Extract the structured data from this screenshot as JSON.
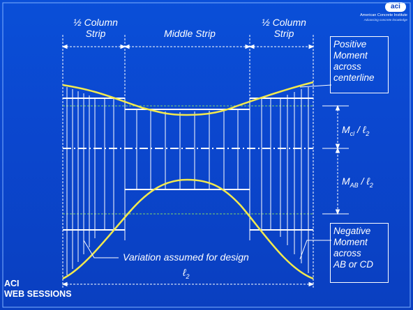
{
  "labels": {
    "left_strip": [
      "½ Column",
      "Strip"
    ],
    "middle_strip": "Middle Strip",
    "right_strip": [
      "½ Column",
      "Strip"
    ],
    "positive_moment": [
      "Positive",
      "Moment",
      "across",
      "centerline"
    ],
    "negative_moment": [
      "Negative",
      "Moment",
      "across",
      "AB or CD"
    ],
    "variation_note": "Variation assumed for design",
    "l2": "ℓ",
    "l2_sub": "2",
    "mcl_main": "M",
    "mcl_sub": "cl",
    "mcl_div": " / ℓ",
    "mcl_div_sub": "2",
    "mab_main": "M",
    "mab_sub": "AB",
    "mab_div": " / ℓ",
    "mab_div_sub": "2"
  },
  "brand": {
    "line1": "ACI",
    "line2": "WEB SESSIONS"
  },
  "logo": {
    "mark": "aci",
    "line1": "American Concrete Institute",
    "line2": "Advancing concrete knowledge"
  },
  "colors": {
    "background": "#0a47cf",
    "curve": "#f2e94e",
    "lines": "#ffffff",
    "dashed_green": "#7fd36b"
  }
}
